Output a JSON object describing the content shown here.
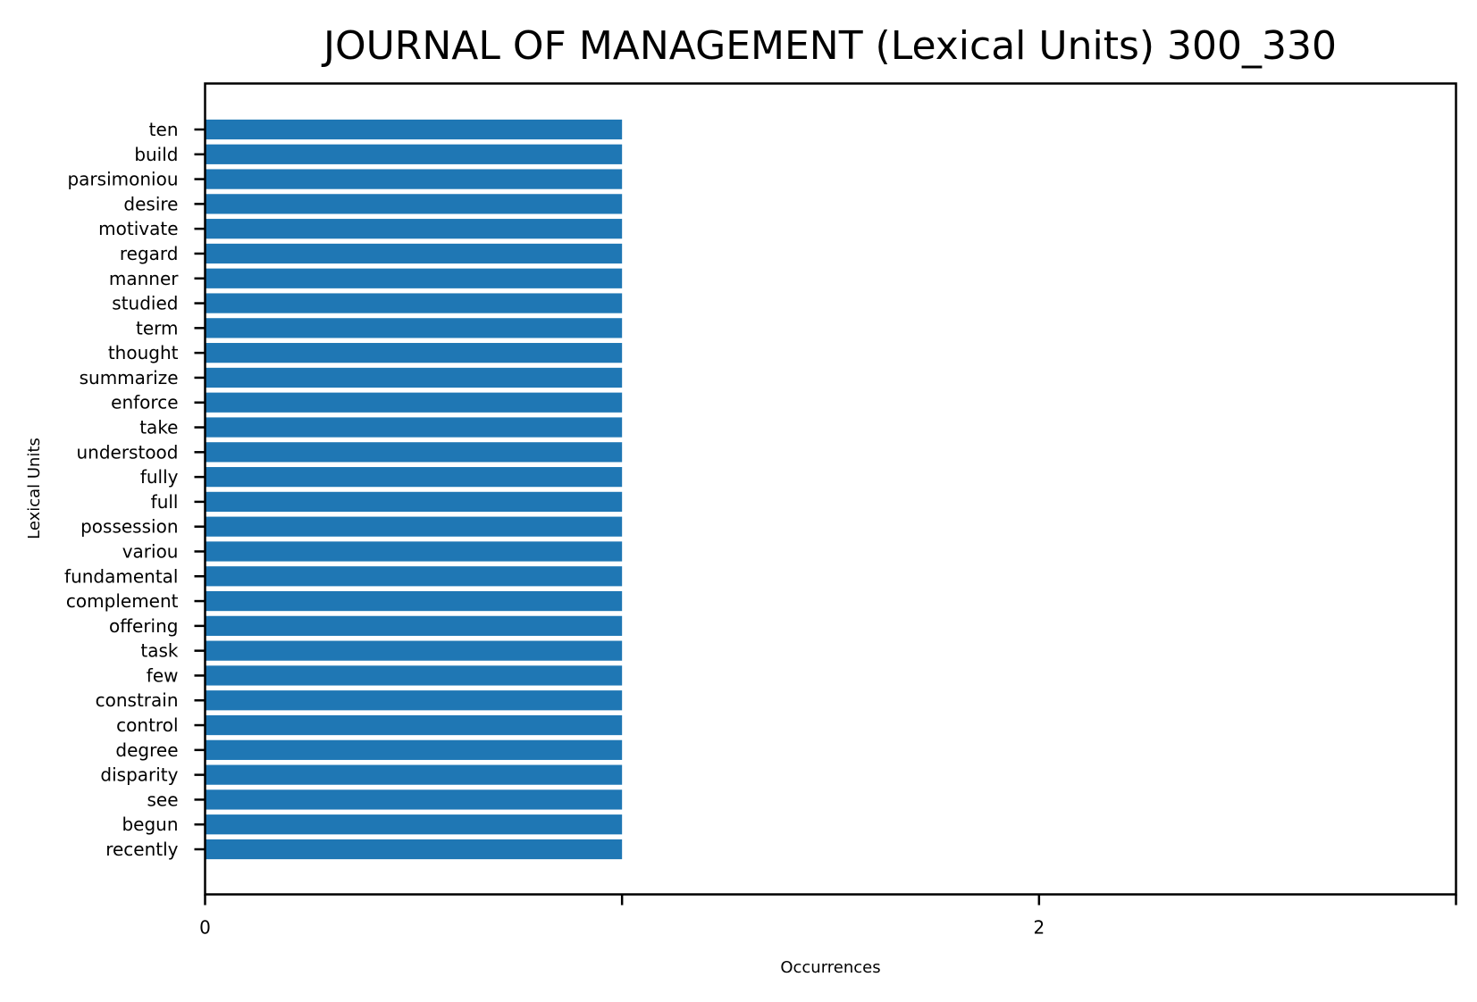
{
  "chart_data": {
    "type": "bar",
    "orientation": "horizontal",
    "title": "JOURNAL OF MANAGEMENT (Lexical Units) 300_330",
    "xlabel": "Occurrences",
    "ylabel": "Lexical Units",
    "xlim": [
      0,
      3
    ],
    "xticks": [
      0,
      1,
      2,
      3
    ],
    "xtick_labels": [
      "0",
      "",
      "2",
      ""
    ],
    "grid": false,
    "bar_color": "#1f77b4",
    "categories": [
      "ten",
      "build",
      "parsimoniou",
      "desire",
      "motivate",
      "regard",
      "manner",
      "studied",
      "term",
      "thought",
      "summarize",
      "enforce",
      "take",
      "understood",
      "fully",
      "full",
      "possession",
      "variou",
      "fundamental",
      "complement",
      "offering",
      "task",
      "few",
      "constrain",
      "control",
      "degree",
      "disparity",
      "see",
      "begun",
      "recently"
    ],
    "values": [
      1,
      1,
      1,
      1,
      1,
      1,
      1,
      1,
      1,
      1,
      1,
      1,
      1,
      1,
      1,
      1,
      1,
      1,
      1,
      1,
      1,
      1,
      1,
      1,
      1,
      1,
      1,
      1,
      1,
      1
    ]
  }
}
